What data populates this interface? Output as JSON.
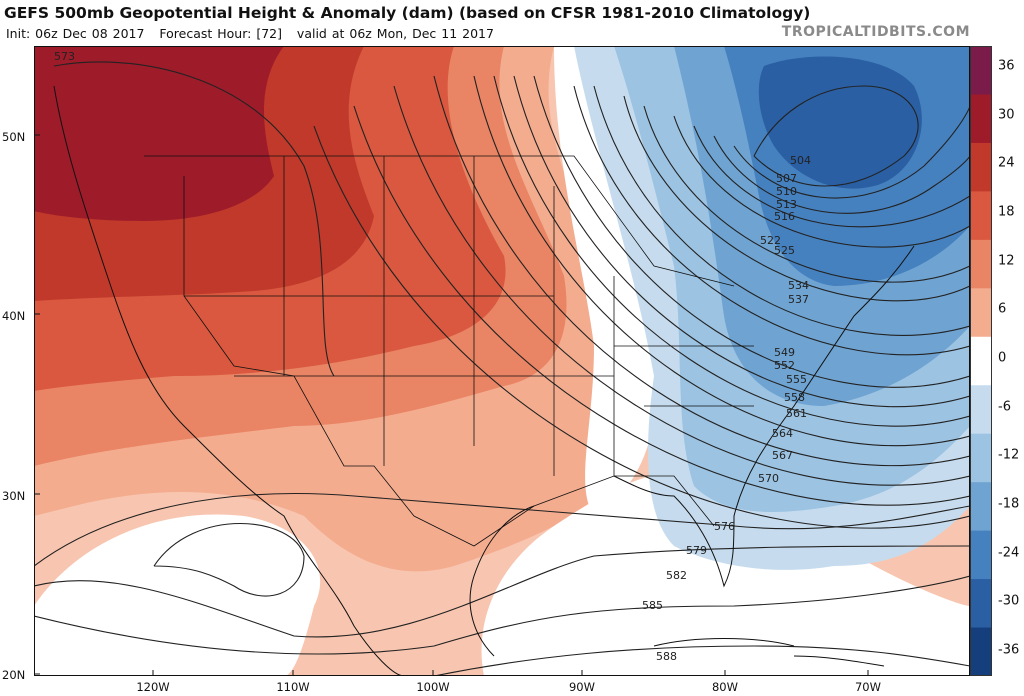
{
  "header": {
    "title": "GEFS 500mb Geopotential Height & Anomaly (dam) (based on CFSR 1981-2010 Climatology)",
    "init": "Init: 06z Dec 08 2017",
    "forecast_hour": "Forecast Hour: [72]",
    "valid": "valid at 06z Mon, Dec 11 2017",
    "site": "TROPICALTIDBITS.COM"
  },
  "colorbar": {
    "labels": [
      "36",
      "30",
      "24",
      "18",
      "12",
      "6",
      "0",
      "-6",
      "-12",
      "-18",
      "-24",
      "-30",
      "-36"
    ],
    "colors": [
      "#7a1b4a",
      "#9e1b2a",
      "#c0392b",
      "#d9583f",
      "#e98464",
      "#f4ac8f",
      "#ffffff",
      "#c6dcee",
      "#9cc3e2",
      "#6fa4d2",
      "#4681bf",
      "#2a5fa3",
      "#143f7c"
    ]
  },
  "axes": {
    "lat_labels": [
      "50N",
      "40N",
      "30N",
      "20N"
    ],
    "lon_labels": [
      "120W",
      "110W",
      "100W",
      "90W",
      "80W",
      "70W"
    ]
  },
  "contour_labels": [
    "573",
    "504",
    "507",
    "510",
    "513",
    "516",
    "522",
    "525",
    "534",
    "537",
    "549",
    "552",
    "555",
    "558",
    "561",
    "564",
    "567",
    "570",
    "576",
    "579",
    "582",
    "585",
    "588"
  ]
}
